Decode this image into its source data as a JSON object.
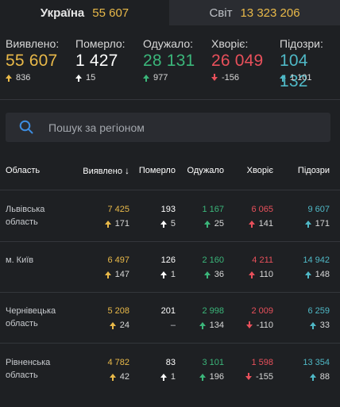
{
  "tabs": {
    "ukraine": {
      "label": "Україна",
      "value": "55 607"
    },
    "world": {
      "label": "Світ",
      "value": "13 323 206"
    }
  },
  "summary": [
    {
      "label": "Виявлено:",
      "value": "55 607",
      "delta": "836",
      "direction": "up",
      "color": "#e9b949"
    },
    {
      "label": "Померло:",
      "value": "1 427",
      "delta": "15",
      "direction": "up",
      "color": "#ffffff"
    },
    {
      "label": "Одужало:",
      "value": "28 131",
      "delta": "977",
      "direction": "up",
      "color": "#3bb67a"
    },
    {
      "label": "Хворіє:",
      "value": "26 049",
      "delta": "-156",
      "direction": "down",
      "color": "#e8505b"
    },
    {
      "label": "Підозри:",
      "value": "104 132",
      "delta": "1 101",
      "direction": "up",
      "color": "#4fb8c6"
    }
  ],
  "search": {
    "placeholder": "Пошук за регіоном",
    "icon": "search-icon"
  },
  "table": {
    "headers": {
      "area": "Область",
      "detected": "Виявлено",
      "dead": "Померло",
      "recovered": "Одужало",
      "sick": "Хворіє",
      "suspect": "Підозри"
    },
    "sorted_by": "detected",
    "rows": [
      {
        "area": "Львівська область",
        "detected": "7 425",
        "detected_delta": "171",
        "detected_dir": "up",
        "dead": "193",
        "dead_delta": "5",
        "dead_dir": "up",
        "recovered": "1 167",
        "recovered_delta": "25",
        "recovered_dir": "up",
        "sick": "6 065",
        "sick_delta": "141",
        "sick_dir": "up",
        "suspect": "9 607",
        "suspect_delta": "171",
        "suspect_dir": "up"
      },
      {
        "area": "м. Київ",
        "detected": "6 497",
        "detected_delta": "147",
        "detected_dir": "up",
        "dead": "126",
        "dead_delta": "1",
        "dead_dir": "up",
        "recovered": "2 160",
        "recovered_delta": "36",
        "recovered_dir": "up",
        "sick": "4 211",
        "sick_delta": "110",
        "sick_dir": "up",
        "suspect": "14 942",
        "suspect_delta": "148",
        "suspect_dir": "up"
      },
      {
        "area": "Чернівецька область",
        "detected": "5 208",
        "detected_delta": "24",
        "detected_dir": "up",
        "dead": "201",
        "dead_delta": "–",
        "dead_dir": "none",
        "recovered": "2 998",
        "recovered_delta": "134",
        "recovered_dir": "up",
        "sick": "2 009",
        "sick_delta": "-110",
        "sick_dir": "down",
        "suspect": "6 259",
        "suspect_delta": "33",
        "suspect_dir": "up"
      },
      {
        "area": "Рівненська область",
        "detected": "4 782",
        "detected_delta": "42",
        "detected_dir": "up",
        "dead": "83",
        "dead_delta": "1",
        "dead_dir": "up",
        "recovered": "3 101",
        "recovered_delta": "196",
        "recovered_dir": "up",
        "sick": "1 598",
        "sick_delta": "-155",
        "sick_dir": "down",
        "suspect": "13 354",
        "suspect_delta": "88",
        "suspect_dir": "up"
      }
    ]
  },
  "colors": {
    "background": "#1e2023",
    "panel": "#2a2c31",
    "detected": "#e9b949",
    "dead": "#ffffff",
    "recovered": "#3bb67a",
    "sick": "#e8505b",
    "suspect": "#4fb8c6"
  }
}
